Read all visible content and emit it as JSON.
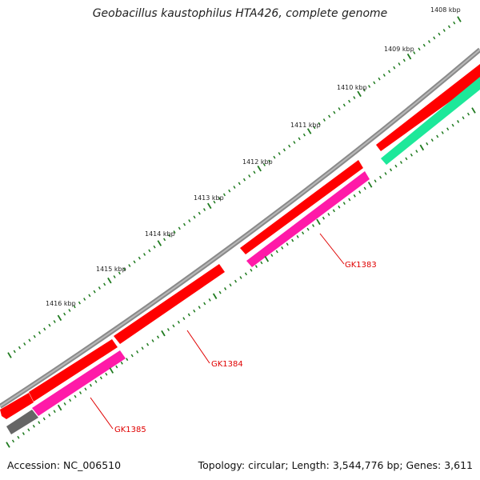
{
  "title": "Geobacillus kaustophilus HTA426, complete genome",
  "footer": {
    "accession": "Accession: NC_006510",
    "summary": "Topology: circular; Length: 3,544,776 bp; Genes: 3,611"
  },
  "ticks": [
    {
      "label": "1408 kbp"
    },
    {
      "label": "1409 kbp"
    },
    {
      "label": "1410 kbp"
    },
    {
      "label": "1411 kbp"
    },
    {
      "label": "1412 kbp"
    },
    {
      "label": "1413 kbp"
    },
    {
      "label": "1414 kbp"
    },
    {
      "label": "1415 kbp"
    },
    {
      "label": "1416 kbp"
    }
  ],
  "genes": [
    {
      "label": "GK1383"
    },
    {
      "label": "GK1384"
    },
    {
      "label": "GK1385"
    }
  ],
  "colors": {
    "backbone": "#8a8a8a",
    "forward_gene": "#ff0000",
    "cds_pink": "#ff1aa8",
    "cds_green": "#1de89a",
    "cds_gray": "#666666",
    "tick": "#1f7a1f",
    "label": "#e00000"
  }
}
